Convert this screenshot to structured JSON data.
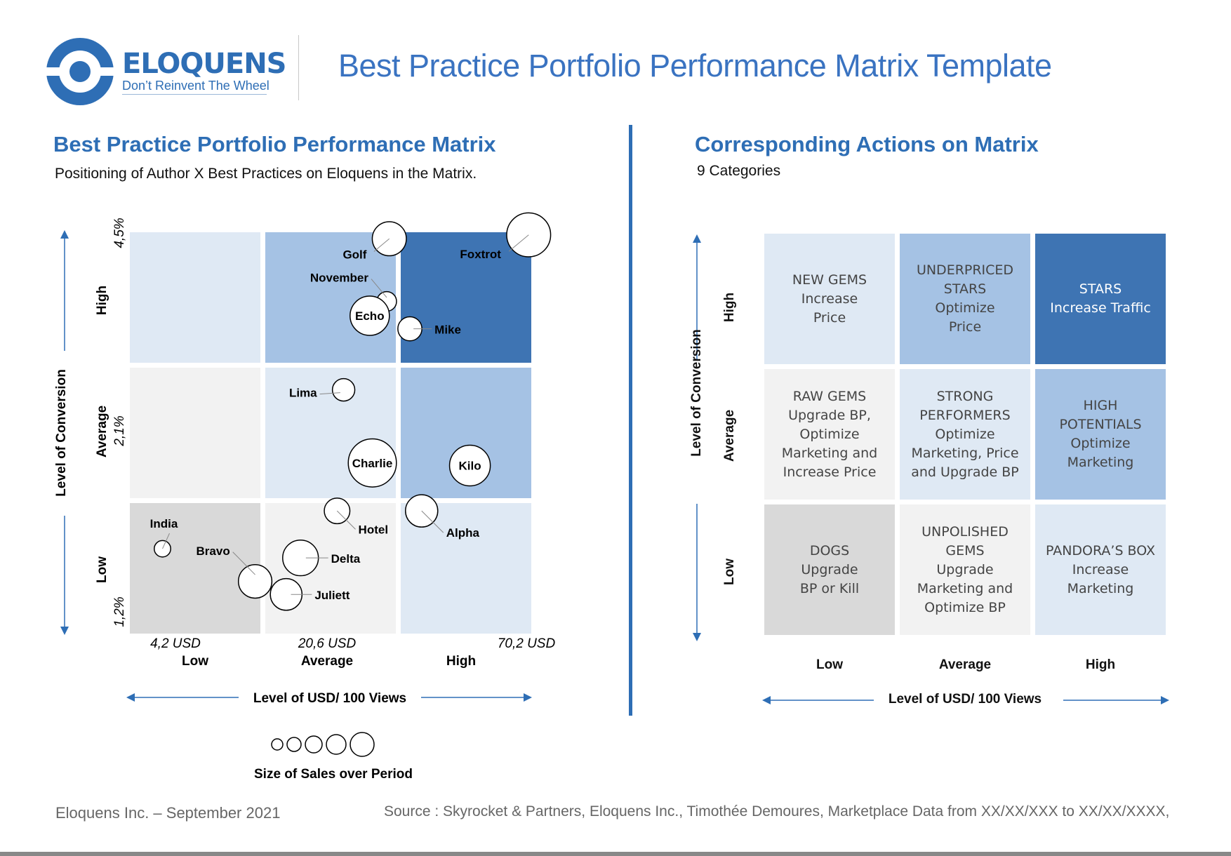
{
  "header": {
    "logo_name": "ELOQUENS",
    "logo_tagline": "Don’t Reinvent The Wheel",
    "title": "Best Practice Portfolio Performance Matrix Template"
  },
  "left": {
    "title": "Best Practice Portfolio Performance Matrix",
    "subtitle": "Positioning of Author X Best Practices on Eloquens in the Matrix."
  },
  "right": {
    "title": "Corresponding Actions on Matrix",
    "subtitle": "9 Categories",
    "y_axis_label": "Level of Conversion",
    "x_axis_label": "Level of USD/ 100 Views",
    "row_labels": [
      "High",
      "Average",
      "Low"
    ],
    "col_labels": [
      "Low",
      "Average",
      "High"
    ],
    "cells": [
      {
        "text": "NEW GEMS\nIncrease\nPrice",
        "color": "#dfe9f4",
        "text_color": "#444444"
      },
      {
        "text": "UNDERPRICED\nSTARS\nOptimize\nPrice",
        "color": "#a5c2e4",
        "text_color": "#444444"
      },
      {
        "text": "STARS\nIncrease Traffic",
        "color": "#3e74b3",
        "text_color": "#ffffff"
      },
      {
        "text": "RAW GEMS\nUpgrade BP,\nOptimize\nMarketing and\nIncrease Price",
        "color": "#f2f2f2",
        "text_color": "#444444"
      },
      {
        "text": "STRONG\nPERFORMERS\nOptimize\nMarketing, Price\nand Upgrade BP",
        "color": "#dfe9f4",
        "text_color": "#444444"
      },
      {
        "text": "HIGH\nPOTENTIALS\nOptimize\nMarketing",
        "color": "#a5c2e4",
        "text_color": "#444444"
      },
      {
        "text": "DOGS\nUpgrade\nBP or Kill",
        "color": "#d9d9d9",
        "text_color": "#444444"
      },
      {
        "text": "UNPOLISHED\nGEMS\nUpgrade\nMarketing and\nOptimize BP",
        "color": "#f2f2f2",
        "text_color": "#444444"
      },
      {
        "text": "PANDORA’S BOX\nIncrease\nMarketing",
        "color": "#dfe9f4",
        "text_color": "#444444"
      }
    ]
  },
  "chart_data": {
    "type": "scatter",
    "title": "Best Practice Portfolio Performance Matrix",
    "xlabel": "Level of USD/ 100 Views",
    "ylabel": "Level of Conversion",
    "x_ticks": [
      "4,2 USD",
      "20,6 USD",
      "70,2 USD"
    ],
    "y_ticks": [
      "4,5%",
      "2,1%",
      "1,2%"
    ],
    "x_category_labels": [
      "Low",
      "Average",
      "High"
    ],
    "y_category_labels": [
      "High",
      "Average",
      "Low"
    ],
    "size_legend_label": "Size of Sales over Period",
    "cell_colors": [
      [
        "#dfe9f4",
        "#a5c2e4",
        "#3e74b3"
      ],
      [
        "#f2f2f2",
        "#dfe9f4",
        "#a5c2e4"
      ],
      [
        "#d9d9d9",
        "#f2f2f2",
        "#dfe9f4"
      ]
    ],
    "points": [
      {
        "name": "Golf",
        "x": 1.95,
        "y": 2.95,
        "size": 3,
        "label_pos": "lower-left"
      },
      {
        "name": "Foxtrot",
        "x": 2.98,
        "y": 2.98,
        "size": 5,
        "label_pos": "lower-left"
      },
      {
        "name": "November",
        "x": 1.93,
        "y": 2.47,
        "size": 1,
        "label_pos": "upper-left"
      },
      {
        "name": "Echo",
        "x": 1.8,
        "y": 2.36,
        "size": 4,
        "label_pos": "inside"
      },
      {
        "name": "Mike",
        "x": 2.07,
        "y": 2.26,
        "size": 1.5,
        "label_pos": "right"
      },
      {
        "name": "Lima",
        "x": 1.6,
        "y": 1.83,
        "size": 1.3,
        "label_pos": "left"
      },
      {
        "name": "Charlie",
        "x": 1.82,
        "y": 1.27,
        "size": 6,
        "label_pos": "inside"
      },
      {
        "name": "Kilo",
        "x": 2.53,
        "y": 1.25,
        "size": 4.3,
        "label_pos": "inside"
      },
      {
        "name": "Hotel",
        "x": 1.55,
        "y": 0.94,
        "size": 1.7,
        "label_pos": "lower-right"
      },
      {
        "name": "Alpha",
        "x": 2.16,
        "y": 0.94,
        "size": 2.7,
        "label_pos": "lower-right"
      },
      {
        "name": "India",
        "x": 0.25,
        "y": 0.65,
        "size": 0.7,
        "label_pos": "upper-right"
      },
      {
        "name": "Delta",
        "x": 1.27,
        "y": 0.58,
        "size": 3.3,
        "label_pos": "right"
      },
      {
        "name": "Bravo",
        "x": 0.96,
        "y": 0.4,
        "size": 2.9,
        "label_pos": "upper-left"
      },
      {
        "name": "Juliett",
        "x": 1.16,
        "y": 0.3,
        "size": 2.6,
        "label_pos": "right"
      }
    ]
  },
  "footer": {
    "left": "Eloquens Inc. – September 2021",
    "right": "Source : Skyrocket & Partners, Eloquens Inc., Timothée Demoures, Marketplace Data from XX/XX/XXX to XX/XX/XXXX,"
  }
}
